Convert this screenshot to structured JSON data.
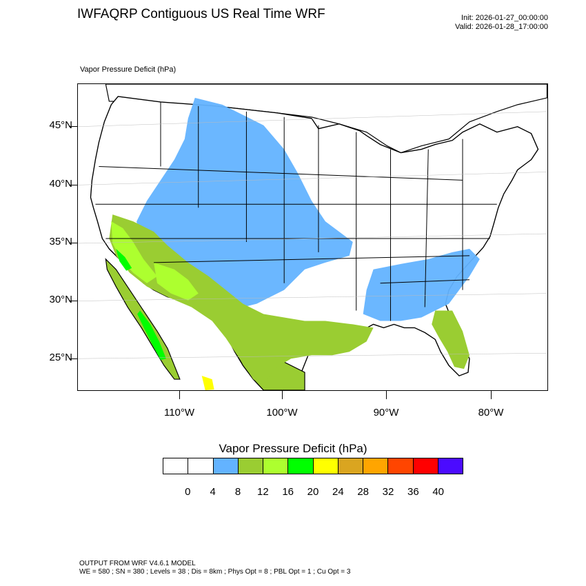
{
  "header": {
    "title": "IWFAQRP Contiguous US Real Time WRF",
    "init": "Init: 2026-01-27_00:00:00",
    "valid": "Valid: 2026-01-28_17:00:00",
    "field": "Vapor Pressure Deficit   (hPa)"
  },
  "map": {
    "lat_labels": [
      "45°N",
      "40°N",
      "35°N",
      "30°N",
      "25°N"
    ],
    "lon_labels": [
      "110°W",
      "100°W",
      "90°W",
      "80°W"
    ],
    "colors": {
      "ocean": "#ffffff",
      "lowest": "#ffffff",
      "vpd_4_8": "#63b3ff",
      "vpd_8_12": "#9acd32",
      "vpd_12_16": "#adff2f",
      "vpd_16_20": "#00ff00",
      "vpd_20_24": "#ffff00",
      "vpd_24_28": "#daa520"
    }
  },
  "colorbar": {
    "title": "Vapor Pressure Deficit  (hPa)",
    "colors": [
      "#ffffff",
      "#ffffff",
      "#63b3ff",
      "#9acd32",
      "#adff2f",
      "#00ff00",
      "#ffff00",
      "#daa520",
      "#ffa500",
      "#ff4500",
      "#ff0000",
      "#4b0bff"
    ],
    "labels": [
      "0",
      "4",
      "8",
      "12",
      "16",
      "20",
      "24",
      "28",
      "32",
      "36",
      "40"
    ]
  },
  "footer": {
    "line1": "OUTPUT FROM WRF V4.6.1 MODEL",
    "line2": "WE = 580 ; SN = 380 ; Levels = 38 ; Dis = 8km ; Phys Opt = 8 ; PBL Opt = 1 ; Cu Opt = 3"
  }
}
